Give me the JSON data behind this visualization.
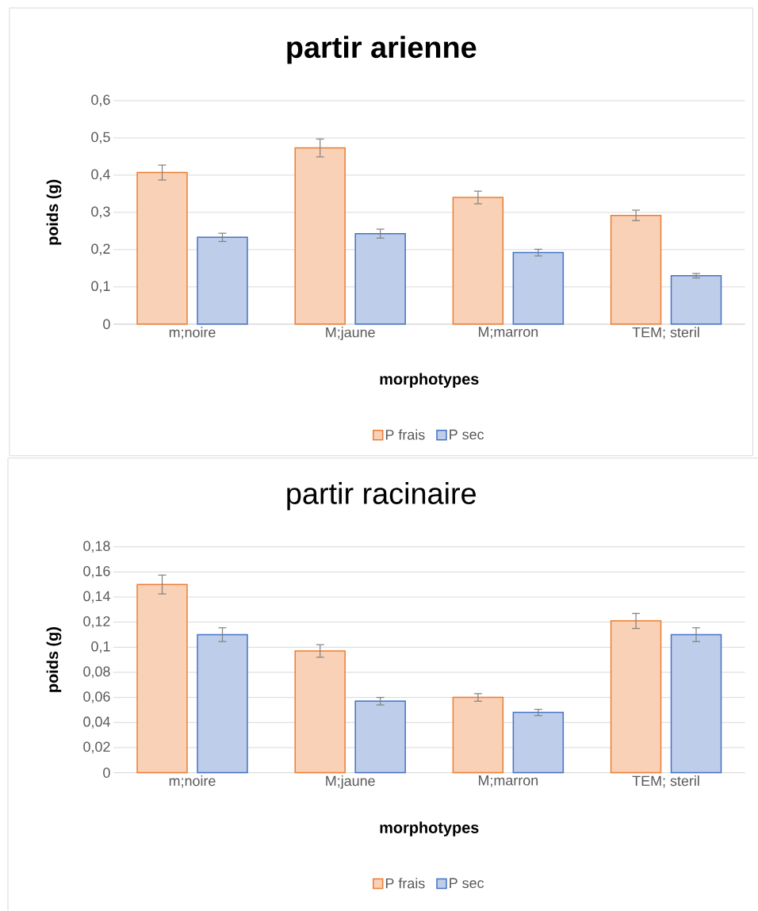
{
  "chart_data": [
    {
      "type": "bar",
      "title": "partir arienne",
      "xlabel": "morphotypes",
      "ylabel": "poids (g)",
      "categories": [
        "m;noire",
        "M;jaune",
        "M;marron",
        "TEM; steril"
      ],
      "series": [
        {
          "name": "P frais",
          "color": "#ed7d31",
          "values": [
            0.407,
            0.473,
            0.34,
            0.292
          ],
          "errors": [
            0.02,
            0.024,
            0.017,
            0.014
          ]
        },
        {
          "name": "P sec",
          "color": "#4472c4",
          "values": [
            0.233,
            0.243,
            0.192,
            0.13
          ],
          "errors": [
            0.011,
            0.012,
            0.009,
            0.006
          ]
        }
      ],
      "ylim": [
        0,
        0.6
      ],
      "yticks": [
        0,
        {
          "value": 0.1,
          "label": "0,1"
        },
        {
          "value": 0.2,
          "label": "0,2"
        },
        {
          "value": 0.3,
          "label": "0,3"
        },
        {
          "value": 0.4,
          "label": "0,4"
        },
        {
          "value": 0.5,
          "label": "0,5"
        },
        {
          "value": 0.6,
          "label": "0,6"
        }
      ],
      "grid": "y",
      "legend": "bottom"
    },
    {
      "type": "bar",
      "title": "partir racinaire",
      "xlabel": "morphotypes",
      "ylabel": "poids (g)",
      "categories": [
        "m;noire",
        "M;jaune",
        "M;marron",
        "TEM; steril"
      ],
      "series": [
        {
          "name": "P frais",
          "color": "#ed7d31",
          "values": [
            0.15,
            0.097,
            0.06,
            0.121
          ],
          "errors": [
            0.0075,
            0.005,
            0.003,
            0.006
          ]
        },
        {
          "name": "P sec",
          "color": "#4472c4",
          "values": [
            0.11,
            0.057,
            0.048,
            0.11
          ],
          "errors": [
            0.0055,
            0.003,
            0.0025,
            0.0055
          ]
        }
      ],
      "ylim": [
        0,
        0.18
      ],
      "yticks": [
        0,
        {
          "value": 0.02,
          "label": "0,02"
        },
        {
          "value": 0.04,
          "label": "0,04"
        },
        {
          "value": 0.06,
          "label": "0,06"
        },
        {
          "value": 0.08,
          "label": "0,08"
        },
        {
          "value": 0.1,
          "label": "0,1"
        },
        {
          "value": 0.12,
          "label": "0,12"
        },
        {
          "value": 0.14,
          "label": "0,14"
        },
        {
          "value": 0.16,
          "label": "0,16"
        },
        {
          "value": 0.18,
          "label": "0,18"
        }
      ],
      "grid": "y",
      "legend": "bottom"
    }
  ]
}
